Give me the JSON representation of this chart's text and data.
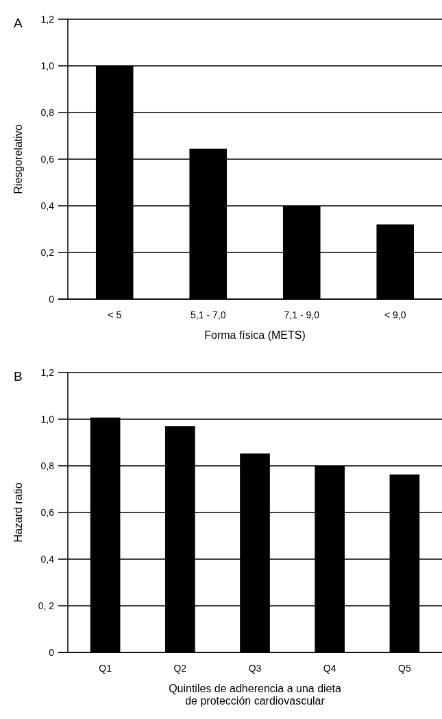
{
  "chart_data": [
    {
      "type": "bar",
      "xlabel": "Forma física (METS)",
      "ylabel": "Riesgorelativo",
      "annotations": [
        "A"
      ],
      "categories": [
        "< 5",
        "5,1 - 7,0",
        "7,1 - 9,0",
        "< 9,0"
      ],
      "values": [
        1.0,
        0.645,
        0.4,
        0.32
      ],
      "color": "#000000",
      "ylim": [
        0,
        1.2
      ],
      "yticks": [
        {
          "value": 0,
          "label": "0"
        },
        {
          "value": 0.2,
          "label": "0,2"
        },
        {
          "value": 0.4,
          "label": "0,4"
        },
        {
          "value": 0.6,
          "label": "0,6"
        },
        {
          "value": 0.8,
          "label": "0,8"
        },
        {
          "value": 1.0,
          "label": "1,0"
        },
        {
          "value": 1.2,
          "label": "1,2"
        }
      ],
      "grid": "y"
    },
    {
      "type": "bar",
      "xlabel": "Quintiles de adherencia a una dieta de protección cardiovascular",
      "ylabel": "Hazard ratio",
      "annotations": [
        "B"
      ],
      "categories": [
        "Q1",
        "Q2",
        "Q3",
        "Q4",
        "Q5"
      ],
      "values": [
        1.007,
        0.97,
        0.853,
        0.8,
        0.763
      ],
      "color": "#000000",
      "ylim": [
        0,
        1.2
      ],
      "yticks": [
        {
          "value": 0,
          "label": "0"
        },
        {
          "value": 0.2,
          "label": "0, 2"
        },
        {
          "value": 0.4,
          "label": "0,4"
        },
        {
          "value": 0.6,
          "label": "0,6"
        },
        {
          "value": 0.8,
          "label": "0,8"
        },
        {
          "value": 1.0,
          "label": "1,0"
        },
        {
          "value": 1.2,
          "label": "1,2"
        }
      ],
      "grid": "y"
    }
  ]
}
